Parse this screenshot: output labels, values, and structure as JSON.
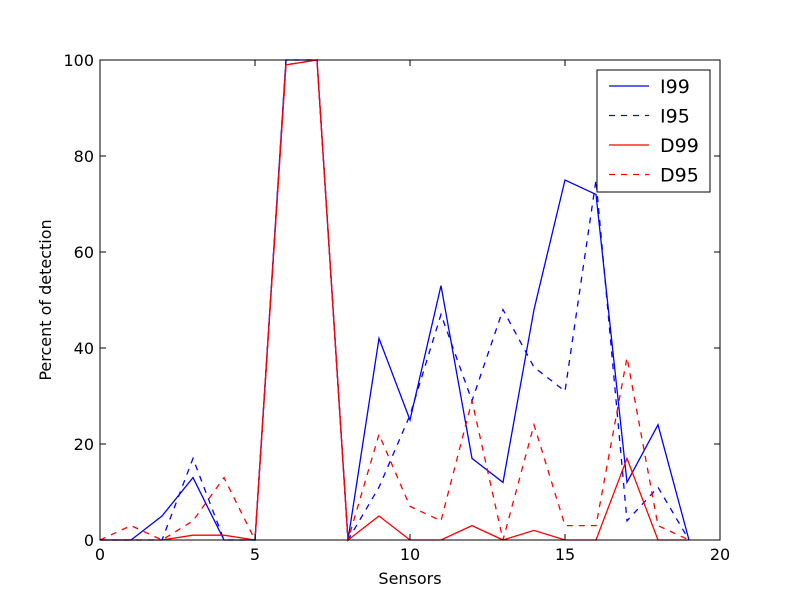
{
  "chart_data": {
    "type": "line",
    "title": "",
    "xlabel": "Sensors",
    "ylabel": "Percent of detection",
    "xlim": [
      0,
      20
    ],
    "ylim": [
      0,
      100
    ],
    "xticks": [
      "0",
      "5",
      "10",
      "15",
      "20"
    ],
    "yticks": [
      "0",
      "20",
      "40",
      "60",
      "80",
      "100"
    ],
    "grid": false,
    "legend_position": "top-right",
    "x": [
      0,
      1,
      2,
      3,
      4,
      5,
      6,
      7,
      8,
      9,
      10,
      11,
      12,
      13,
      14,
      15,
      16,
      17,
      18,
      19
    ],
    "series": [
      {
        "name": "I99",
        "color": "#0000ff",
        "style": "solid",
        "values": [
          0,
          0,
          5,
          13,
          0,
          0,
          100,
          100,
          0,
          42,
          25,
          53,
          17,
          12,
          48,
          75,
          72,
          12,
          24,
          0
        ]
      },
      {
        "name": "I95",
        "color": "#0000ff",
        "style": "dashed",
        "values": [
          0,
          0,
          0,
          17,
          0,
          0,
          100,
          100,
          0,
          11,
          26,
          47,
          29,
          48,
          36,
          31,
          75,
          4,
          11,
          0
        ]
      },
      {
        "name": "D99",
        "color": "#ff0000",
        "style": "solid",
        "values": [
          0,
          0,
          0,
          1,
          1,
          0,
          99,
          100,
          0,
          5,
          0,
          0,
          3,
          0,
          2,
          0,
          0,
          17,
          0,
          0
        ]
      },
      {
        "name": "D95",
        "color": "#ff0000",
        "style": "dashed",
        "values": [
          0,
          3,
          0,
          4,
          13,
          0,
          99,
          100,
          0,
          22,
          7,
          4,
          29,
          0,
          24,
          3,
          3,
          38,
          3,
          0
        ]
      }
    ]
  }
}
